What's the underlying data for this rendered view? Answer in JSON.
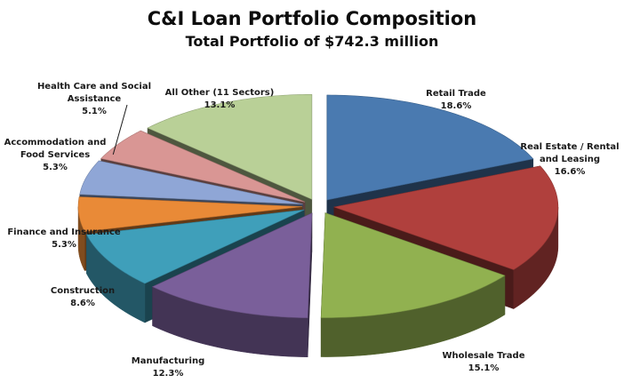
{
  "title": "C&I Loan Portfolio Composition",
  "subtitle": "Total Portfolio of $742.3 million",
  "chart_data": {
    "type": "pie",
    "title": "C&I Loan Portfolio Composition",
    "subtitle": "Total Portfolio of $742.3 million",
    "style": "3d-exploded",
    "categories": [
      "Retail Trade",
      "Real Estate / Rental and Leasing",
      "Wholesale Trade",
      "Manufacturing",
      "Construction",
      "Finance and Insurance",
      "Accommodation and Food Services",
      "Health Care and Social Assistance",
      "All Other (11 Sectors)"
    ],
    "values": [
      18.6,
      16.6,
      15.1,
      12.3,
      8.6,
      5.3,
      5.3,
      5.1,
      13.1
    ],
    "value_labels": [
      "18.6%",
      "16.6%",
      "15.1%",
      "12.3%",
      "8.6%",
      "5.3%",
      "5.3%",
      "5.1%",
      "13.1%"
    ],
    "label_lines": [
      [
        "Retail Trade"
      ],
      [
        "Real Estate / Rental",
        "and Leasing"
      ],
      [
        "Wholesale Trade"
      ],
      [
        "Manufacturing"
      ],
      [
        "Construction"
      ],
      [
        "Finance and Insurance"
      ],
      [
        "Accommodation and",
        "Food Services"
      ],
      [
        "Health Care and Social",
        "Assistance"
      ],
      [
        "All Other (11 Sectors)"
      ]
    ],
    "colors": [
      "#4a7ab0",
      "#b0403d",
      "#91b150",
      "#7a5f9a",
      "#3f9fba",
      "#e98a37",
      "#8fa6d6",
      "#d99694",
      "#b9d097"
    ],
    "legend": "none"
  }
}
